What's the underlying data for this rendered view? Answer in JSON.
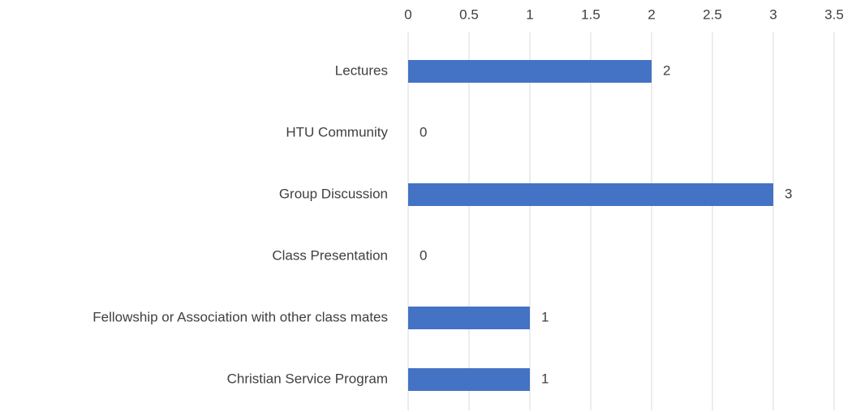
{
  "chart_data": {
    "type": "hbar",
    "categories": [
      "Lectures",
      "HTU Community",
      "Group Discussion",
      "Class Presentation",
      "Fellowship or Association with other class mates",
      "Christian Service Program"
    ],
    "values": [
      2,
      0,
      3,
      0,
      1,
      1
    ],
    "color": "#4472c4",
    "xlim": [
      0,
      3.5
    ],
    "xticks": [
      0,
      0.5,
      1,
      1.5,
      2,
      2.5,
      3,
      3.5
    ],
    "grid": true
  }
}
